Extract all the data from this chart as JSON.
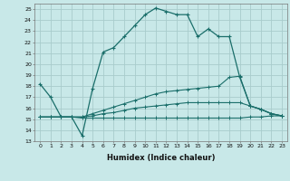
{
  "xlabel": "Humidex (Indice chaleur)",
  "bg_color": "#c8e8e8",
  "grid_color": "#a8cccc",
  "line_color": "#1a6e6a",
  "xlim": [
    -0.5,
    23.5
  ],
  "ylim": [
    13,
    25.5
  ],
  "xticks": [
    0,
    1,
    2,
    3,
    4,
    5,
    6,
    7,
    8,
    9,
    10,
    11,
    12,
    13,
    14,
    15,
    16,
    17,
    18,
    19,
    20,
    21,
    22,
    23
  ],
  "yticks": [
    13,
    14,
    15,
    16,
    17,
    18,
    19,
    20,
    21,
    22,
    23,
    24,
    25
  ],
  "line1_x": [
    0,
    1,
    2,
    3,
    4,
    5,
    6,
    7,
    8,
    9,
    10,
    11,
    12,
    13,
    14,
    15,
    16,
    17,
    18,
    19,
    20,
    21,
    22,
    23
  ],
  "line1_y": [
    18.2,
    17.0,
    15.2,
    15.2,
    13.5,
    17.8,
    21.1,
    21.5,
    22.5,
    23.5,
    24.5,
    25.1,
    24.8,
    24.5,
    24.5,
    22.5,
    23.2,
    22.5,
    22.5,
    18.8,
    16.2,
    15.9,
    15.5,
    15.3
  ],
  "line2_x": [
    0,
    1,
    2,
    3,
    4,
    5,
    6,
    7,
    8,
    9,
    10,
    11,
    12,
    13,
    14,
    15,
    16,
    17,
    18,
    19,
    20,
    21,
    22,
    23
  ],
  "line2_y": [
    15.2,
    15.2,
    15.2,
    15.2,
    15.2,
    15.5,
    15.8,
    16.1,
    16.4,
    16.7,
    17.0,
    17.3,
    17.5,
    17.6,
    17.7,
    17.8,
    17.9,
    18.0,
    18.8,
    18.9,
    16.2,
    15.9,
    15.5,
    15.3
  ],
  "line3_x": [
    0,
    1,
    2,
    3,
    4,
    5,
    6,
    7,
    8,
    9,
    10,
    11,
    12,
    13,
    14,
    15,
    16,
    17,
    18,
    19,
    20,
    21,
    22,
    23
  ],
  "line3_y": [
    15.2,
    15.2,
    15.2,
    15.2,
    15.2,
    15.3,
    15.5,
    15.6,
    15.8,
    16.0,
    16.1,
    16.2,
    16.3,
    16.4,
    16.5,
    16.5,
    16.5,
    16.5,
    16.5,
    16.5,
    16.2,
    15.9,
    15.5,
    15.3
  ],
  "line4_x": [
    0,
    1,
    2,
    3,
    4,
    5,
    6,
    7,
    8,
    9,
    10,
    11,
    12,
    13,
    14,
    15,
    16,
    17,
    18,
    19,
    20,
    21,
    22,
    23
  ],
  "line4_y": [
    15.2,
    15.2,
    15.2,
    15.2,
    15.1,
    15.1,
    15.1,
    15.1,
    15.1,
    15.1,
    15.1,
    15.1,
    15.1,
    15.1,
    15.1,
    15.1,
    15.1,
    15.1,
    15.1,
    15.1,
    15.2,
    15.2,
    15.3,
    15.3
  ]
}
